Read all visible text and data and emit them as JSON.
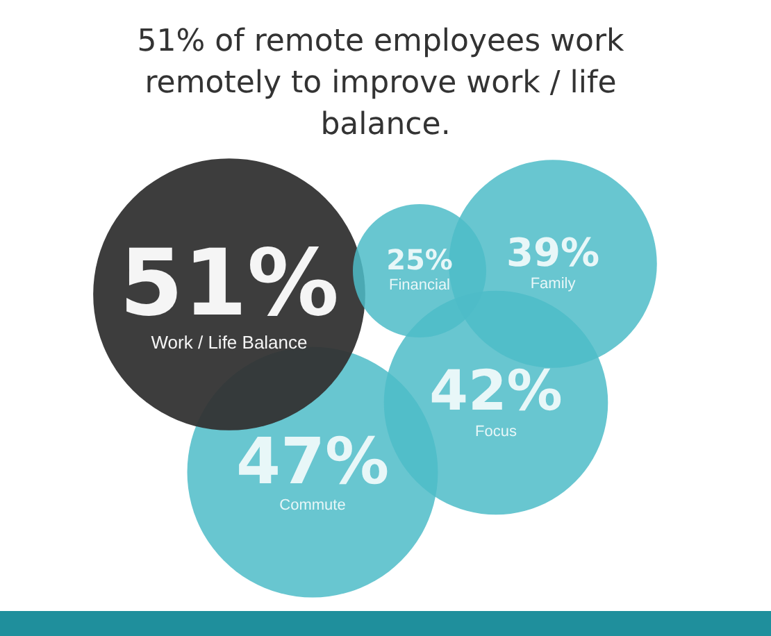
{
  "chart_data": {
    "type": "other",
    "title": "51% of remote employees work remotely to improve work / life balance.",
    "categories": [
      "Work / Life Balance",
      "Financial",
      "Family",
      "Focus",
      "Commute"
    ],
    "values": [
      51,
      25,
      39,
      42,
      47
    ],
    "value_labels": [
      "51%",
      "25%",
      "39%",
      "42%",
      "47%"
    ],
    "colors": [
      "#333333",
      "#4dbcc8",
      "#4dbcc8",
      "#4dbcc8",
      "#4dbcc8"
    ]
  }
}
